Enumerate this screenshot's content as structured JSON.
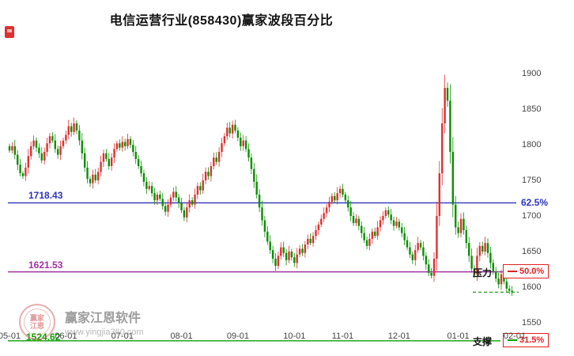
{
  "title": "电信运营行业(858430)赢家波段百分比",
  "watermark": {
    "brand": "赢家江恩软件",
    "url": "www.yingjia360.com",
    "seal_line1": "赢家",
    "seal_line2": "江恩"
  },
  "colors": {
    "up": "#e03030",
    "down": "#089000",
    "axis_text": "#444444",
    "label_red": "#e02020"
  },
  "chart_data": {
    "type": "candlestick",
    "title": "电信运营行业(858430)赢家波段百分比",
    "ylim": [
      1550,
      1900
    ],
    "y_ticks": [
      1900,
      1850,
      1800,
      1750,
      1700,
      1650,
      1600,
      1550
    ],
    "x_tick_labels": [
      "05-01",
      "06-01",
      "07-01",
      "08-01",
      "09-01",
      "10-01",
      "11-01",
      "12-01",
      "01-01",
      "02-01"
    ],
    "x_tick_indices": [
      0,
      21,
      42,
      64,
      85,
      106,
      124,
      145,
      167,
      188
    ],
    "closes": [
      1792,
      1798,
      1786,
      1772,
      1760,
      1756,
      1768,
      1784,
      1798,
      1806,
      1796,
      1788,
      1778,
      1790,
      1802,
      1812,
      1806,
      1794,
      1786,
      1798,
      1806,
      1814,
      1826,
      1818,
      1830,
      1820,
      1806,
      1788,
      1768,
      1752,
      1746,
      1758,
      1750,
      1762,
      1776,
      1788,
      1780,
      1770,
      1782,
      1794,
      1802,
      1796,
      1804,
      1798,
      1808,
      1800,
      1790,
      1780,
      1770,
      1760,
      1748,
      1738,
      1742,
      1732,
      1722,
      1730,
      1724,
      1714,
      1706,
      1716,
      1726,
      1734,
      1726,
      1718,
      1708,
      1698,
      1712,
      1722,
      1716,
      1730,
      1742,
      1736,
      1750,
      1762,
      1756,
      1770,
      1782,
      1776,
      1790,
      1802,
      1812,
      1824,
      1816,
      1828,
      1820,
      1810,
      1798,
      1806,
      1794,
      1782,
      1766,
      1748,
      1730,
      1712,
      1694,
      1678,
      1664,
      1652,
      1640,
      1630,
      1644,
      1656,
      1648,
      1638,
      1650,
      1642,
      1634,
      1646,
      1654,
      1648,
      1660,
      1668,
      1662,
      1672,
      1680,
      1688,
      1696,
      1704,
      1712,
      1720,
      1728,
      1722,
      1732,
      1738,
      1730,
      1722,
      1712,
      1700,
      1690,
      1696,
      1686,
      1676,
      1666,
      1658,
      1668,
      1678,
      1672,
      1684,
      1694,
      1700,
      1708,
      1702,
      1694,
      1686,
      1692,
      1684,
      1676,
      1666,
      1656,
      1646,
      1638,
      1652,
      1662,
      1656,
      1644,
      1632,
      1620,
      1616,
      1640,
      1700,
      1760,
      1830,
      1880,
      1862,
      1790,
      1716,
      1684,
      1676,
      1696,
      1680,
      1662,
      1644,
      1626,
      1618,
      1644,
      1658,
      1650,
      1662,
      1648,
      1634,
      1622,
      1612,
      1604,
      1618,
      1608,
      1598,
      1595,
      1593
    ],
    "last_price": 1593,
    "levels": [
      {
        "value": 1718.43,
        "price_label": "1718.43",
        "percent": "62.5%",
        "color": "#2a35c0",
        "sample_color": "#2a35c0",
        "boxed": false,
        "tag": ""
      },
      {
        "value": 1621.53,
        "price_label": "1621.53",
        "percent": "50.0%",
        "color": "#a030a0",
        "sample_color": "#e02020",
        "boxed": true,
        "tag": "压力"
      },
      {
        "value": 1524.62,
        "price_label": "1524.62",
        "percent": "31.5%",
        "color": "#0aa000",
        "sample_color": "#0aa000",
        "boxed": true,
        "tag": "支撑"
      }
    ]
  }
}
